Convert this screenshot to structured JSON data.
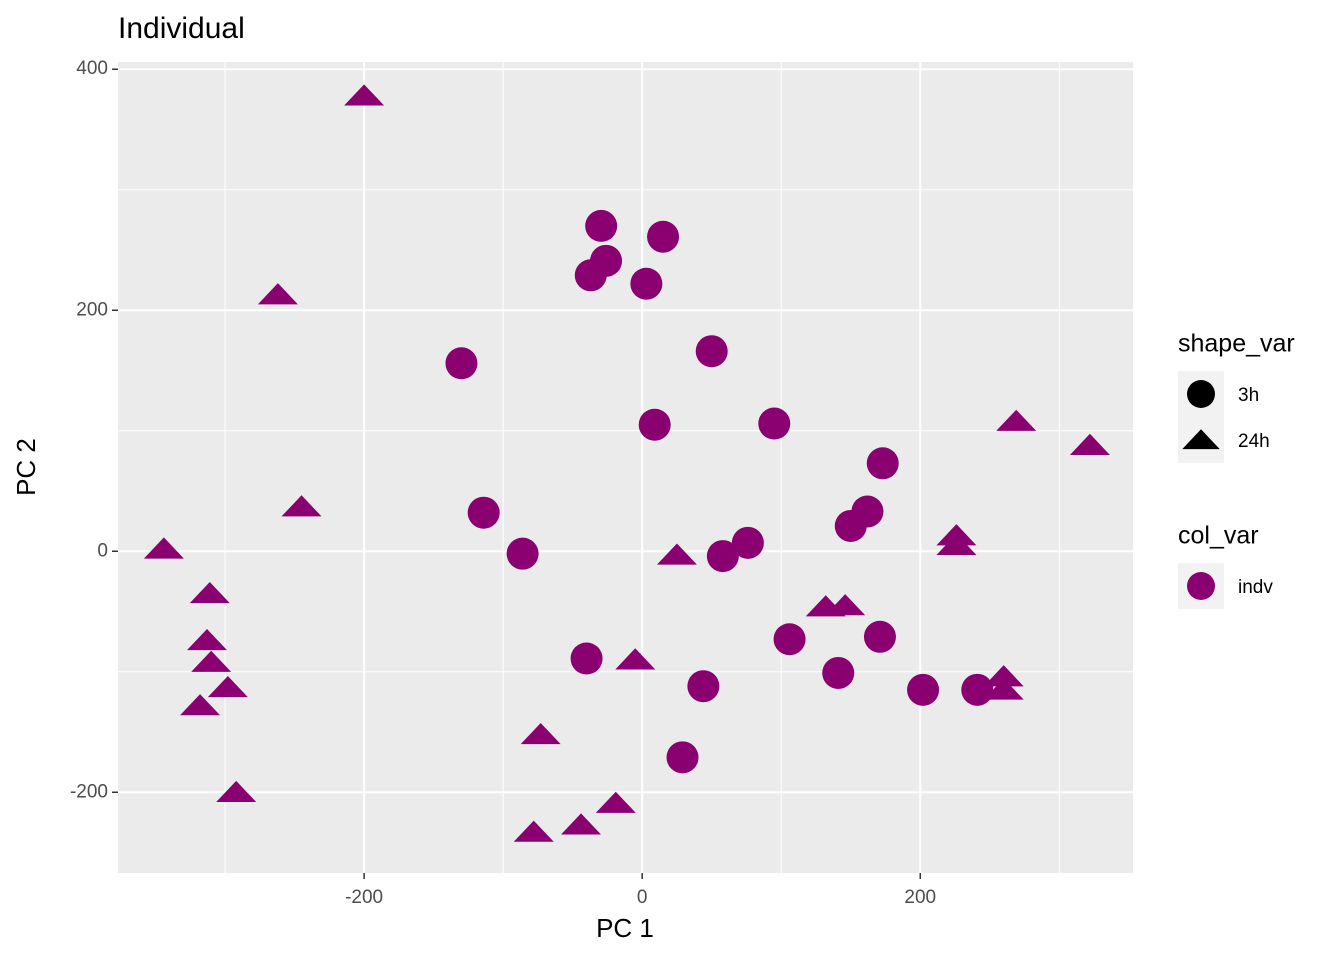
{
  "chart_data": {
    "type": "scatter",
    "title": "Individual",
    "x_label": "PC 1",
    "y_label": "PC 2",
    "color": "#8b0070",
    "xlim": [
      -377,
      353
    ],
    "ylim": [
      -267,
      406
    ],
    "xticks": [
      -200,
      0,
      200
    ],
    "yticks": [
      -200,
      0,
      200,
      400
    ],
    "minor_xticks": [
      -300,
      -100,
      100,
      300
    ],
    "minor_yticks": [
      -100,
      100,
      300
    ],
    "grid": true,
    "shape_legend": {
      "title": "shape_var"
    },
    "color_legend": {
      "title": "col_var",
      "labels": [
        "indv"
      ]
    },
    "series": [
      {
        "name": "3h",
        "shape": "circle",
        "x": [
          -29.5,
          15,
          -26,
          -37,
          3,
          -130,
          50,
          9,
          95,
          173,
          -114,
          162,
          150,
          -86,
          58,
          76,
          106,
          171,
          -40,
          44,
          141,
          202,
          241,
          29
        ],
        "values": [
          270,
          261,
          241,
          229,
          222,
          156,
          166,
          105,
          106,
          73,
          32,
          33,
          21,
          -2,
          -4,
          7,
          -73,
          -71,
          -89,
          -112,
          -101,
          -115,
          -115,
          -171
        ]
      },
      {
        "name": "24h",
        "shape": "triangle",
        "x": [
          -200,
          -262,
          -245,
          -344,
          -311,
          -313,
          -310,
          -298,
          -318,
          -292,
          -73,
          -78,
          -44,
          -19,
          -5,
          25,
          132,
          146,
          269,
          322,
          226,
          226,
          260,
          260
        ],
        "values": [
          378,
          213,
          37,
          2,
          -35,
          -74,
          -92,
          -113,
          -128,
          -200,
          -152,
          -233,
          -227,
          -209,
          -90,
          -3,
          -46,
          -45,
          108,
          88,
          13,
          5,
          -104,
          -115
        ]
      }
    ]
  }
}
